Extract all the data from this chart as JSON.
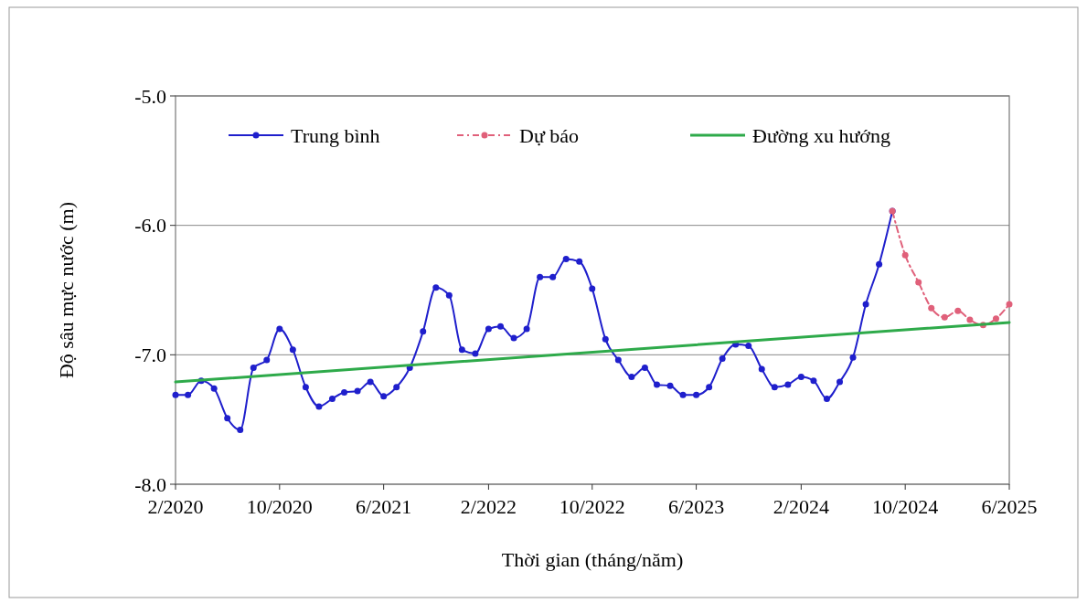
{
  "chart_data": {
    "type": "line",
    "xlabel": "Thời gian (tháng/năm)",
    "ylabel": "Độ sâu mực nước (m)",
    "xlim": [
      "2020-02",
      "2025-06"
    ],
    "ylim": [
      -8,
      -5
    ],
    "xticks": [
      {
        "value": "2020-02",
        "label": "2/2020"
      },
      {
        "value": "2020-10",
        "label": "10/2020"
      },
      {
        "value": "2021-06",
        "label": "6/2021"
      },
      {
        "value": "2022-02",
        "label": "2/2022"
      },
      {
        "value": "2022-10",
        "label": "10/2022"
      },
      {
        "value": "2023-06",
        "label": "6/2023"
      },
      {
        "value": "2024-02",
        "label": "2/2024"
      },
      {
        "value": "2024-10",
        "label": "10/2024"
      },
      {
        "value": "2025-06",
        "label": "6/2025"
      }
    ],
    "yticks": [
      {
        "value": -8,
        "label": "-8.0"
      },
      {
        "value": -7,
        "label": "-7.0"
      },
      {
        "value": -6,
        "label": "-6.0"
      },
      {
        "value": -5,
        "label": "-5.0"
      }
    ],
    "grid": "y",
    "legend": "top",
    "series": [
      {
        "name": "Trung bình",
        "color": "#1f1fcc",
        "marker": "circle",
        "line_style": "solid",
        "x": [
          "2020-02",
          "2020-03",
          "2020-04",
          "2020-05",
          "2020-06",
          "2020-07",
          "2020-08",
          "2020-09",
          "2020-10",
          "2020-11",
          "2020-12",
          "2021-01",
          "2021-02",
          "2021-03",
          "2021-04",
          "2021-05",
          "2021-06",
          "2021-07",
          "2021-08",
          "2021-09",
          "2021-10",
          "2021-11",
          "2021-12",
          "2022-01",
          "2022-02",
          "2022-03",
          "2022-04",
          "2022-05",
          "2022-06",
          "2022-07",
          "2022-08",
          "2022-09",
          "2022-10",
          "2022-11",
          "2022-12",
          "2023-01",
          "2023-02",
          "2023-03",
          "2023-04",
          "2023-05",
          "2023-06",
          "2023-07",
          "2023-08",
          "2023-09",
          "2023-10",
          "2023-11",
          "2023-12",
          "2024-01",
          "2024-02",
          "2024-03",
          "2024-04",
          "2024-05",
          "2024-06",
          "2024-07",
          "2024-08",
          "2024-09"
        ],
        "values": [
          -7.31,
          -7.31,
          -7.2,
          -7.26,
          -7.49,
          -7.58,
          -7.1,
          -7.04,
          -6.8,
          -6.96,
          -7.25,
          -7.4,
          -7.34,
          -7.29,
          -7.28,
          -7.21,
          -7.32,
          -7.25,
          -7.1,
          -6.82,
          -6.48,
          -6.54,
          -6.96,
          -6.99,
          -6.8,
          -6.78,
          -6.87,
          -6.8,
          -6.4,
          -6.4,
          -6.26,
          -6.28,
          -6.49,
          -6.88,
          -7.04,
          -7.17,
          -7.1,
          -7.23,
          -7.24,
          -7.31,
          -7.31,
          -7.25,
          -7.03,
          -6.92,
          -6.93,
          -7.11,
          -7.25,
          -7.23,
          -7.17,
          -7.2,
          -7.34,
          -7.21,
          -7.02,
          -6.61,
          -6.3,
          -5.89
        ]
      },
      {
        "name": "Dự báo",
        "color": "#e0607a",
        "marker": "circle",
        "line_style": "dashed",
        "x": [
          "2024-09",
          "2024-10",
          "2024-11",
          "2024-12",
          "2025-01",
          "2025-02",
          "2025-03",
          "2025-04",
          "2025-05",
          "2025-06"
        ],
        "values": [
          -5.89,
          -6.23,
          -6.44,
          -6.64,
          -6.71,
          -6.66,
          -6.73,
          -6.77,
          -6.72,
          -6.61
        ]
      },
      {
        "name": "Đường xu hướng",
        "color": "#2eaa4a",
        "marker": "none",
        "line_style": "solid",
        "x": [
          "2020-02",
          "2025-06"
        ],
        "values": [
          -7.21,
          -6.75
        ]
      }
    ]
  }
}
